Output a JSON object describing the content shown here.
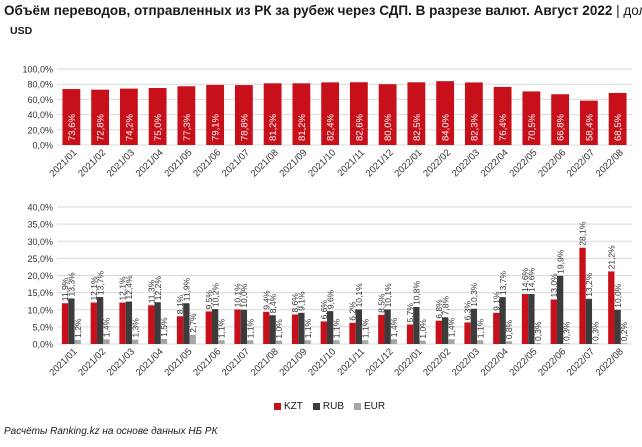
{
  "title_main": "Объём переводов, отправленных из РК за рубеж через СДП. В разрезе валют. Август 2022",
  "title_unit": " | доля, %",
  "source": "Расчёты Ranking.kz на основе данных НБ РК",
  "colors": {
    "red": "#c8101b",
    "dark": "#3c3c3c",
    "gray": "#a6a6a6",
    "grid": "#d9d9d9"
  },
  "chart_data": [
    {
      "type": "bar",
      "title": "USD",
      "categories": [
        "2021/01",
        "2021/02",
        "2021/03",
        "2021/04",
        "2021/05",
        "2021/06",
        "2021/07",
        "2021/08",
        "2021/09",
        "2021/10",
        "2021/11",
        "2021/12",
        "2022/01",
        "2022/02",
        "2022/03",
        "2022/04",
        "2022/05",
        "2022/06",
        "2022/07",
        "2022/08"
      ],
      "values": [
        73.6,
        72.8,
        74.2,
        75.0,
        77.3,
        79.1,
        78.8,
        81.2,
        81.2,
        82.4,
        82.6,
        80.0,
        82.5,
        84.0,
        82.3,
        76.4,
        70.5,
        66.8,
        58.4,
        68.5
      ],
      "labels": [
        "73,6%",
        "72,8%",
        "74,2%",
        "75,0%",
        "77,3%",
        "79,1%",
        "78,8%",
        "81,2%",
        "81,2%",
        "82,4%",
        "82,6%",
        "80,0%",
        "82,5%",
        "84,0%",
        "82,3%",
        "76,4%",
        "70,5%",
        "66,8%",
        "58,4%",
        "68,5%"
      ],
      "yticks": [
        "0,0%",
        "20,0%",
        "40,0%",
        "60,0%",
        "80,0%",
        "100,0%"
      ],
      "ylim": [
        0,
        100
      ]
    },
    {
      "type": "bar",
      "categories": [
        "2021/01",
        "2021/02",
        "2021/03",
        "2021/04",
        "2021/05",
        "2021/06",
        "2021/07",
        "2021/08",
        "2021/09",
        "2021/10",
        "2021/11",
        "2021/12",
        "2022/01",
        "2022/02",
        "2022/03",
        "2022/04",
        "2022/05",
        "2022/06",
        "2022/07",
        "2022/08"
      ],
      "series": [
        {
          "name": "KZT",
          "values": [
            11.9,
            12.1,
            12.1,
            11.3,
            8.1,
            9.5,
            10.1,
            9.4,
            8.6,
            6.6,
            6.2,
            8.5,
            5.7,
            6.8,
            6.3,
            9.1,
            14.6,
            13.0,
            28.1,
            21.2
          ],
          "labels": [
            "11,9%",
            "12,1%",
            "12,1%",
            "11,3%",
            "8,1%",
            "9,5%",
            "10,1%",
            "9,4%",
            "8,6%",
            "6,6%",
            "6,2%",
            "8,5%",
            "5,7%",
            "6,8%",
            "6,3%",
            "9,1%",
            "14,6%",
            "13,0%",
            "28,1%",
            "21,2%"
          ]
        },
        {
          "name": "RUB",
          "values": [
            13.3,
            13.7,
            12.4,
            12.2,
            11.9,
            10.2,
            10.0,
            8.4,
            9.1,
            9.6,
            10.1,
            10.1,
            10.8,
            7.8,
            10.3,
            13.7,
            14.6,
            19.9,
            13.2,
            10.0
          ],
          "labels": [
            "13,3%",
            "13,7%",
            "12,4%",
            "12,2%",
            "11,9%",
            "10,2%",
            "10,0%",
            "8,4%",
            "9,1%",
            "9,6%",
            "10,1%",
            "10,1%",
            "10,8%",
            "7,8%",
            "10,3%",
            "13,7%",
            "14,6%",
            "19,9%",
            "13,2%",
            "10,0%"
          ]
        },
        {
          "name": "EUR",
          "values": [
            1.2,
            1.4,
            1.3,
            1.5,
            2.7,
            1.1,
            1.1,
            1.0,
            1.1,
            1.1,
            1.1,
            1.4,
            1.0,
            1.4,
            1.1,
            0.8,
            0.3,
            0.3,
            0.3,
            0.2
          ],
          "labels": [
            "1,2%",
            "1,4%",
            "1,3%",
            "1,5%",
            "2,7%",
            "1,1%",
            "1,1%",
            "1,0%",
            "1,1%",
            "1,1%",
            "1,1%",
            "1,4%",
            "1,0%",
            "1,4%",
            "1,1%",
            "0,8%",
            "0,3%",
            "0,3%",
            "0,3%",
            "0,2%"
          ]
        }
      ],
      "yticks": [
        "0,0%",
        "5,0%",
        "10,0%",
        "15,0%",
        "20,0%",
        "25,0%",
        "30,0%",
        "35,0%",
        "40,0%"
      ],
      "ylim": [
        0,
        40
      ],
      "legend": "bottom"
    }
  ]
}
